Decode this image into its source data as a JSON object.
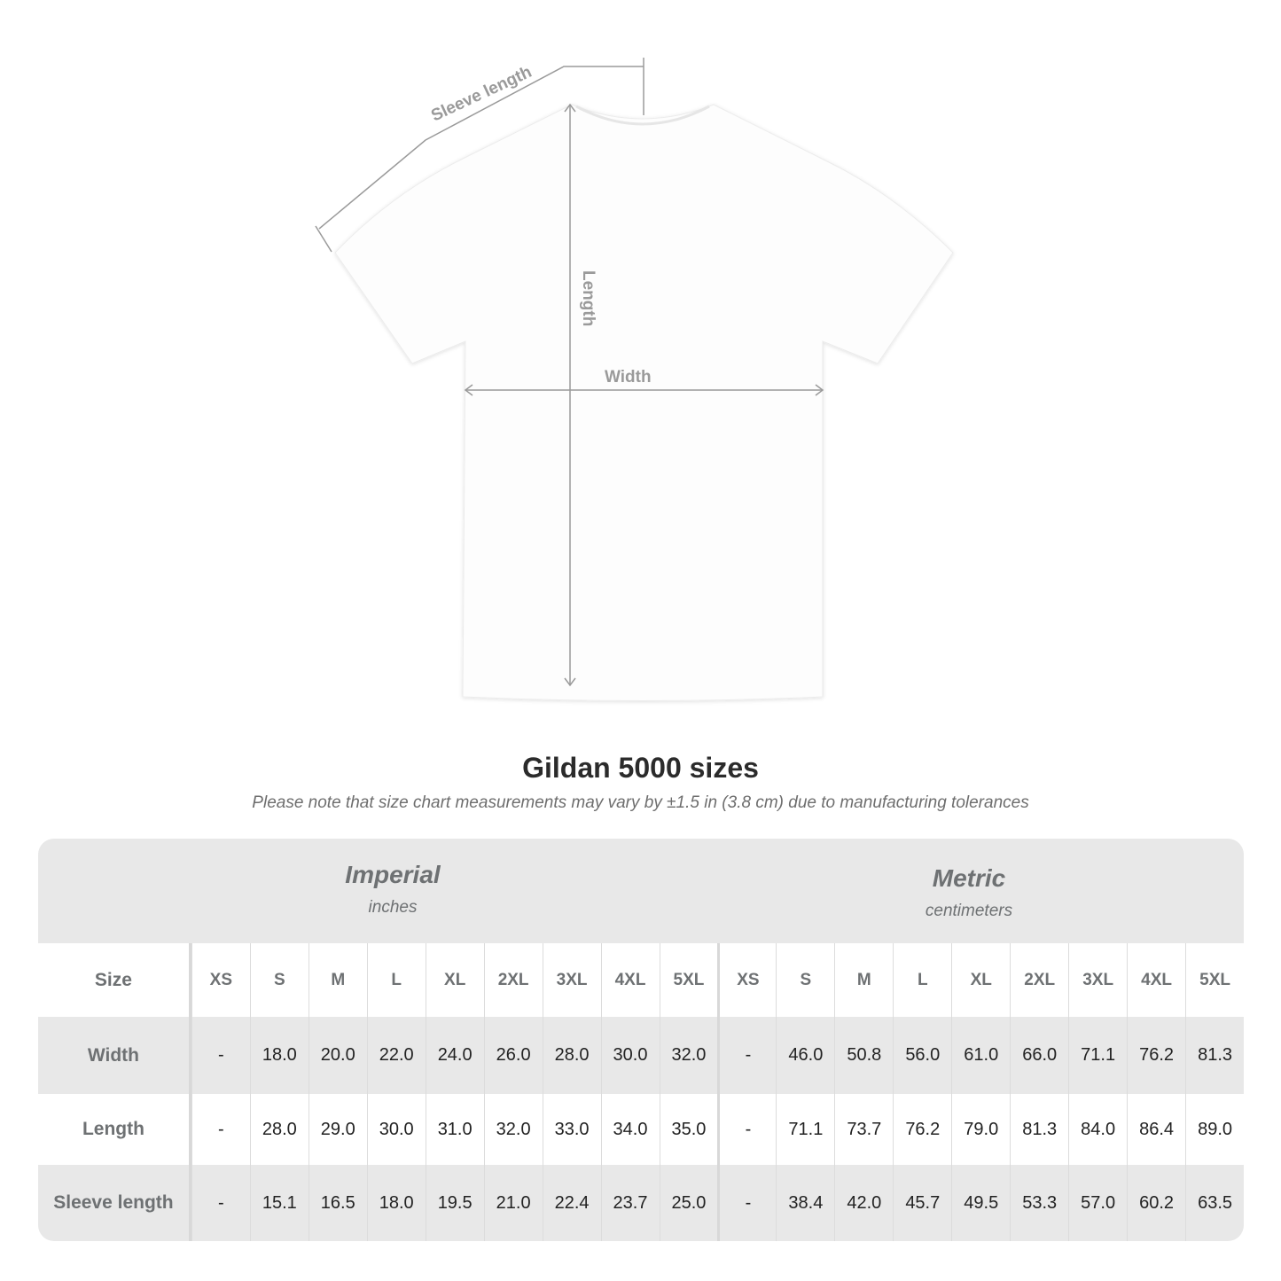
{
  "diagram": {
    "sleeve_label": "Sleeve length",
    "length_label": "Length",
    "width_label": "Width",
    "line_color": "#9a9a9a"
  },
  "title": "Gildan 5000 sizes",
  "subtitle": "Please note that size chart measurements may vary by ±1.5 in (3.8 cm) due to manufacturing tolerances",
  "table": {
    "imperial": {
      "name": "Imperial",
      "unit": "inches"
    },
    "metric": {
      "name": "Metric",
      "unit": "centimeters"
    },
    "size_label": "Size",
    "sizes": [
      "XS",
      "S",
      "M",
      "L",
      "XL",
      "2XL",
      "3XL",
      "4XL",
      "5XL"
    ],
    "rows": [
      {
        "label": "Width",
        "imperial": [
          "-",
          "18.0",
          "20.0",
          "22.0",
          "24.0",
          "26.0",
          "28.0",
          "30.0",
          "32.0"
        ],
        "metric": [
          "-",
          "46.0",
          "50.8",
          "56.0",
          "61.0",
          "66.0",
          "71.1",
          "76.2",
          "81.3"
        ]
      },
      {
        "label": "Length",
        "imperial": [
          "-",
          "28.0",
          "29.0",
          "30.0",
          "31.0",
          "32.0",
          "33.0",
          "34.0",
          "35.0"
        ],
        "metric": [
          "-",
          "71.1",
          "73.7",
          "76.2",
          "79.0",
          "81.3",
          "84.0",
          "86.4",
          "89.0"
        ]
      },
      {
        "label": "Sleeve length",
        "imperial": [
          "-",
          "15.1",
          "16.5",
          "18.0",
          "19.5",
          "21.0",
          "22.4",
          "23.7",
          "25.0"
        ],
        "metric": [
          "-",
          "38.4",
          "42.0",
          "45.7",
          "49.5",
          "53.3",
          "57.0",
          "60.2",
          "63.5"
        ]
      }
    ]
  }
}
